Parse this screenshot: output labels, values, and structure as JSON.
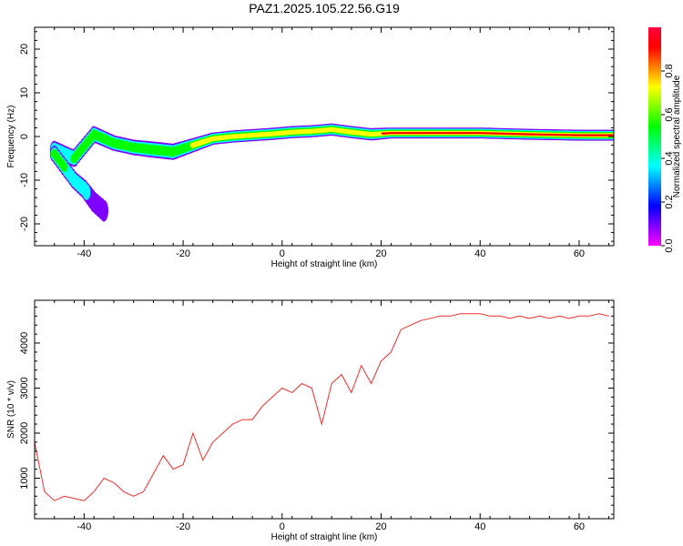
{
  "figure_title": "PAZ1.2025.105.22.56.G19",
  "chart_data": [
    {
      "type": "heatmap",
      "title": "",
      "xlabel": "Height of straight line (km)",
      "ylabel": "Frequency (Hz)",
      "xlim": [
        -50,
        67
      ],
      "ylim": [
        -25,
        25
      ],
      "xticks": [
        -40,
        -20,
        0,
        20,
        40,
        60
      ],
      "yticks": [
        -20,
        -10,
        0,
        10,
        20
      ],
      "colorbar": {
        "label": "Normalized spectral amplitude",
        "range": [
          0,
          1
        ],
        "ticks": [
          "0.0",
          "0.2",
          "0.4",
          "0.6",
          "0.8"
        ],
        "colormap": "gist_rainbow_r",
        "colors": [
          "#ff00ff",
          "#8000ff",
          "#0000ff",
          "#0080ff",
          "#00ffff",
          "#00ff80",
          "#00ff00",
          "#80ff00",
          "#ffff00",
          "#ff8000",
          "#ff0000",
          "#ff0040"
        ]
      },
      "ridge": {
        "x": [
          -46,
          -42,
          -38,
          -34,
          -30,
          -26,
          -22,
          -18,
          -14,
          -10,
          -6,
          -2,
          2,
          6,
          10,
          14,
          18,
          22,
          30,
          40,
          50,
          60,
          67
        ],
        "y": [
          -3,
          -5,
          0.5,
          -1.5,
          -2.5,
          -3,
          -3.5,
          -2,
          -0.5,
          0,
          0.3,
          0.6,
          1,
          1.2,
          1.6,
          1.0,
          0.5,
          0.8,
          0.8,
          0.8,
          0.5,
          0.3,
          0.3
        ],
        "amplitude": [
          0.45,
          0.5,
          0.55,
          0.6,
          0.6,
          0.55,
          0.55,
          0.7,
          0.85,
          0.85,
          0.85,
          0.85,
          0.85,
          0.85,
          0.85,
          0.85,
          0.85,
          0.95,
          0.95,
          0.95,
          0.95,
          0.95,
          0.95
        ]
      },
      "branch": {
        "x": [
          -46,
          -44,
          -42,
          -40,
          -38,
          -36
        ],
        "y": [
          -4,
          -7,
          -10,
          -12,
          -15,
          -17
        ],
        "amplitude": [
          0.55,
          0.5,
          0.45,
          0.35,
          0.2,
          0.15
        ]
      }
    },
    {
      "type": "line",
      "title": "",
      "xlabel": "Height of straight line (km)",
      "ylabel": "SNR (10 * v/v)",
      "xlim": [
        -50,
        67
      ],
      "ylim": [
        100,
        4950
      ],
      "xticks": [
        -40,
        -20,
        0,
        20,
        40,
        60
      ],
      "yticks": [
        1000,
        2000,
        3000,
        4000
      ],
      "color": "#e8302e",
      "x": [
        -50,
        -48,
        -46,
        -44,
        -42,
        -40,
        -38,
        -36,
        -34,
        -32,
        -30,
        -28,
        -26,
        -24,
        -22,
        -20,
        -18,
        -16,
        -14,
        -12,
        -10,
        -8,
        -6,
        -4,
        -2,
        0,
        2,
        4,
        6,
        8,
        10,
        12,
        14,
        16,
        18,
        20,
        22,
        24,
        26,
        28,
        30,
        32,
        34,
        36,
        38,
        40,
        42,
        44,
        46,
        48,
        50,
        52,
        54,
        56,
        58,
        60,
        62,
        64,
        66
      ],
      "y": [
        1800,
        700,
        500,
        600,
        550,
        500,
        700,
        1000,
        900,
        700,
        600,
        700,
        1100,
        1500,
        1200,
        1300,
        2000,
        1400,
        1800,
        2000,
        2200,
        2300,
        2300,
        2600,
        2800,
        3000,
        2900,
        3100,
        3000,
        2200,
        3100,
        3300,
        2900,
        3500,
        3100,
        3600,
        3800,
        4300,
        4400,
        4500,
        4550,
        4600,
        4600,
        4650,
        4650,
        4650,
        4600,
        4600,
        4550,
        4600,
        4550,
        4600,
        4550,
        4600,
        4550,
        4600,
        4600,
        4650,
        4600
      ]
    }
  ]
}
